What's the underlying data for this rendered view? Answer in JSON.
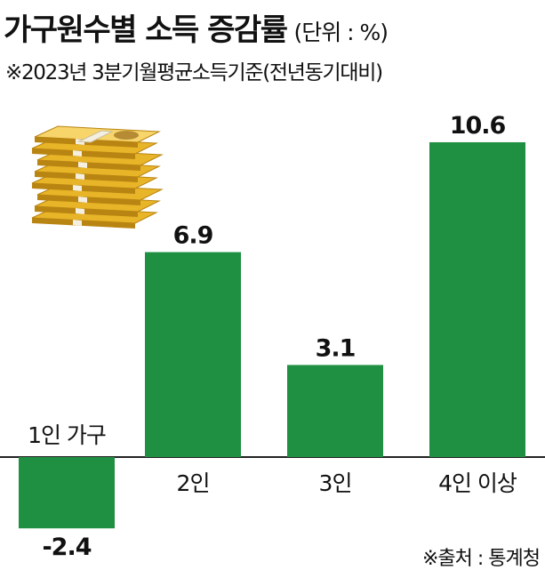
{
  "header": {
    "title": "가구원수별 소득 증감률",
    "unit": "(단위 : %)",
    "subtitle": "※2023년 3분기월평균소득기준(전년동기대비)"
  },
  "footer": {
    "source": "※출처 : 통계청"
  },
  "colors": {
    "bar": "#1f8f41",
    "text": "#111111",
    "baseline": "#222222"
  },
  "decoration": {
    "icon": "money-stack-icon"
  },
  "chart_data": {
    "type": "bar",
    "categories": [
      "1인 가구",
      "2인",
      "3인",
      "4인 이상"
    ],
    "values": [
      -2.4,
      6.9,
      3.1,
      10.6
    ],
    "value_labels": [
      "-2.4",
      "6.9",
      "3.1",
      "10.6"
    ],
    "title": "가구원수별 소득 증감률",
    "subtitle": "※2023년 3분기월평균소득기준(전년동기대비)",
    "ylabel": "",
    "xlabel": "",
    "unit": "%",
    "ylim": [
      -2.4,
      10.6
    ],
    "grid": false,
    "legend": "none"
  }
}
